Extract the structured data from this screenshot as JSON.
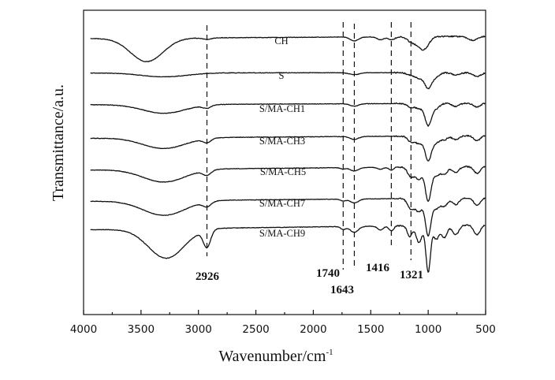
{
  "chart_data": {
    "type": "line",
    "title": "",
    "xlabel": "Wavenumber/cm",
    "xlabel_superscript": "-1",
    "ylabel": "Transmittance/a.u.",
    "xlim": [
      4000,
      500
    ],
    "x_reversed": true,
    "x_ticks": [
      "4000",
      "3500",
      "3000",
      "2500",
      "2000",
      "1500",
      "1000",
      "500"
    ],
    "y_ticks_shown": false,
    "grid": false,
    "offset": 1,
    "series": [
      {
        "name": "CH",
        "baseline": 0.45,
        "features": [
          [
            3450,
            4.8,
            200
          ],
          [
            2926,
            0.3,
            60
          ],
          [
            1643,
            0.8,
            50
          ],
          [
            1416,
            0.6,
            40
          ],
          [
            1321,
            0.6,
            40
          ],
          [
            1150,
            0.9,
            50
          ],
          [
            1070,
            1.8,
            60
          ],
          [
            1020,
            1.5,
            50
          ],
          [
            610,
            0.8,
            60
          ]
        ]
      },
      {
        "name": "S",
        "baseline": 0.1,
        "features": [
          [
            3300,
            0.8,
            280
          ],
          [
            1643,
            0.4,
            60
          ],
          [
            1150,
            0.5,
            50
          ],
          [
            1080,
            1.0,
            45
          ],
          [
            1000,
            3.2,
            45
          ],
          [
            930,
            0.8,
            40
          ],
          [
            760,
            0.5,
            50
          ],
          [
            575,
            0.8,
            50
          ]
        ]
      },
      {
        "name": "S/MA-CH1",
        "baseline": 0.3,
        "features": [
          [
            3300,
            1.8,
            260
          ],
          [
            2926,
            0.6,
            50
          ],
          [
            1643,
            0.5,
            50
          ],
          [
            1150,
            0.8,
            40
          ],
          [
            1080,
            1.0,
            40
          ],
          [
            1000,
            4.5,
            40
          ],
          [
            930,
            1.0,
            40
          ],
          [
            760,
            0.6,
            40
          ],
          [
            575,
            0.8,
            40
          ]
        ]
      },
      {
        "name": "S/MA-CH3",
        "baseline": 0.55,
        "features": [
          [
            3300,
            2.2,
            260
          ],
          [
            2926,
            0.8,
            50
          ],
          [
            1643,
            0.6,
            50
          ],
          [
            1150,
            1.2,
            40
          ],
          [
            1080,
            1.5,
            40
          ],
          [
            1000,
            5.0,
            40
          ],
          [
            930,
            1.3,
            40
          ],
          [
            860,
            0.8,
            40
          ],
          [
            760,
            0.8,
            40
          ],
          [
            575,
            1.0,
            40
          ]
        ]
      },
      {
        "name": "S/MA-CH5",
        "baseline": 0.75,
        "features": [
          [
            3300,
            2.6,
            260
          ],
          [
            2926,
            1.0,
            50
          ],
          [
            1740,
            0.3,
            30
          ],
          [
            1643,
            0.7,
            50
          ],
          [
            1416,
            0.4,
            35
          ],
          [
            1321,
            0.6,
            30
          ],
          [
            1150,
            2.0,
            40
          ],
          [
            1080,
            2.4,
            40
          ],
          [
            1000,
            7.0,
            35
          ],
          [
            930,
            1.8,
            40
          ],
          [
            860,
            1.5,
            40
          ],
          [
            760,
            1.2,
            40
          ],
          [
            575,
            1.4,
            40
          ]
        ]
      },
      {
        "name": "S/MA-CH7",
        "baseline": 0.7,
        "features": [
          [
            3300,
            3.0,
            260
          ],
          [
            2926,
            1.0,
            50
          ],
          [
            1740,
            0.4,
            30
          ],
          [
            1643,
            0.8,
            50
          ],
          [
            1150,
            2.2,
            40
          ],
          [
            1080,
            2.6,
            40
          ],
          [
            1000,
            7.5,
            35
          ],
          [
            930,
            2.0,
            40
          ],
          [
            860,
            1.6,
            40
          ],
          [
            760,
            1.3,
            40
          ],
          [
            575,
            1.5,
            40
          ]
        ]
      },
      {
        "name": "S/MA-CH9",
        "baseline": 1.05,
        "features": [
          [
            3280,
            6.0,
            220
          ],
          [
            2926,
            3.5,
            45
          ],
          [
            1740,
            0.6,
            30
          ],
          [
            1643,
            1.2,
            50
          ],
          [
            1416,
            0.8,
            35
          ],
          [
            1321,
            1.0,
            30
          ],
          [
            1160,
            2.2,
            30
          ],
          [
            1080,
            3.5,
            35
          ],
          [
            1000,
            9.5,
            28
          ],
          [
            930,
            2.8,
            35
          ],
          [
            860,
            2.5,
            35
          ],
          [
            760,
            2.0,
            40
          ],
          [
            575,
            2.0,
            40
          ]
        ]
      }
    ],
    "annotations": [
      {
        "x": 2926,
        "label": "2926"
      },
      {
        "x": 1740,
        "label": "1740"
      },
      {
        "x": 1643,
        "label": "1643"
      },
      {
        "x": 1321,
        "label": "1416"
      },
      {
        "x": 1150,
        "label": "1321"
      }
    ]
  }
}
